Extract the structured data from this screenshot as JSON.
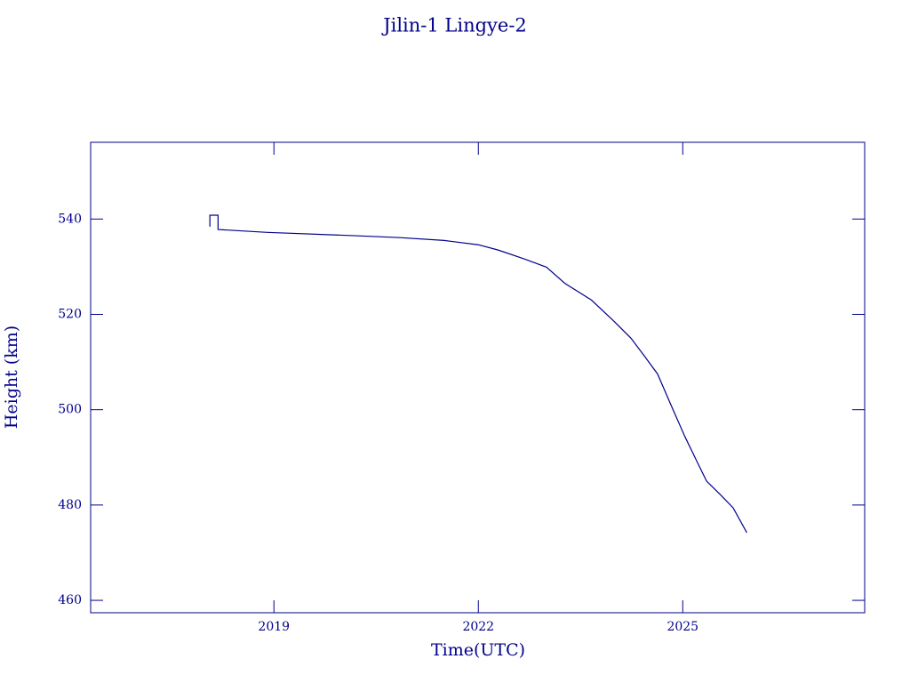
{
  "chart_data": {
    "type": "line",
    "title": "Jilin-1 Lingye-2",
    "x_label": "Time(UTC)",
    "y_label": "Height (km)",
    "color": "#00008b",
    "x": [
      2018.06,
      2018.06,
      2018.18,
      2018.18,
      2018.9,
      2020.2,
      2020.85,
      2021.5,
      2022.0,
      2022.29,
      2022.68,
      2023.0,
      2023.27,
      2023.66,
      2023.98,
      2024.24,
      2024.44,
      2024.63,
      2024.83,
      2025.03,
      2025.22,
      2025.35,
      2025.55,
      2025.74,
      2025.94
    ],
    "values": [
      538.4,
      540.8,
      540.8,
      537.8,
      537.2,
      536.5,
      536.1,
      535.5,
      534.6,
      533.5,
      531.6,
      529.9,
      526.5,
      523.0,
      518.7,
      515.0,
      511.2,
      507.5,
      500.9,
      494.4,
      488.8,
      485.0,
      482.2,
      479.4,
      474.2
    ],
    "xlim": [
      2016.31,
      2027.67
    ],
    "xticks": [
      2019,
      2022,
      2025
    ],
    "ylim": [
      457.4,
      556.1
    ],
    "yticks": [
      460,
      480,
      500,
      520,
      540
    ]
  }
}
